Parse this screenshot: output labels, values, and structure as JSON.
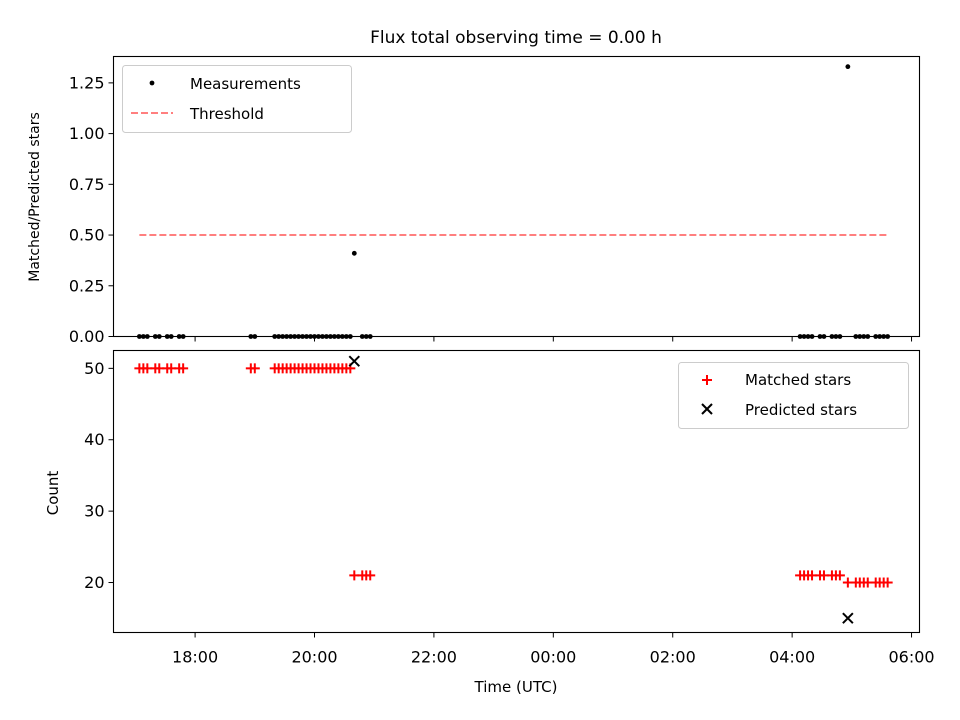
{
  "chart_data": [
    {
      "type": "scatter",
      "title": "Flux total observing time = 0.00 h",
      "xlabel": "",
      "ylabel": "Matched/Predicted stars",
      "ylim": [
        0,
        1.38
      ],
      "yticks": [
        0,
        0.25,
        0.5,
        0.75,
        1.0,
        1.25
      ],
      "ytick_labels": [
        "0.00",
        "0.25",
        "0.50",
        "0.75",
        "1.00",
        "1.25"
      ],
      "xlim": [
        "16:38",
        "06:08"
      ],
      "legend": {
        "placement": "top-left",
        "entries": [
          "Measurements",
          "Threshold"
        ]
      },
      "series": [
        {
          "name": "Measurements",
          "kind": "points",
          "color": "#000000",
          "points": [
            [
              "17:04",
              0
            ],
            [
              "17:08",
              0
            ],
            [
              "17:12",
              0
            ],
            [
              "17:20",
              0
            ],
            [
              "17:24",
              0
            ],
            [
              "17:32",
              0
            ],
            [
              "17:36",
              0
            ],
            [
              "17:44",
              0
            ],
            [
              "17:48",
              0
            ],
            [
              "18:56",
              0
            ],
            [
              "19:00",
              0
            ],
            [
              "19:20",
              0
            ],
            [
              "19:24",
              0
            ],
            [
              "19:28",
              0
            ],
            [
              "19:32",
              0
            ],
            [
              "19:36",
              0
            ],
            [
              "19:40",
              0
            ],
            [
              "19:44",
              0
            ],
            [
              "19:48",
              0
            ],
            [
              "19:52",
              0
            ],
            [
              "19:56",
              0
            ],
            [
              "20:00",
              0
            ],
            [
              "20:04",
              0
            ],
            [
              "20:08",
              0
            ],
            [
              "20:12",
              0
            ],
            [
              "20:16",
              0
            ],
            [
              "20:20",
              0
            ],
            [
              "20:24",
              0
            ],
            [
              "20:28",
              0
            ],
            [
              "20:32",
              0
            ],
            [
              "20:36",
              0
            ],
            [
              "20:40",
              0.41
            ],
            [
              "20:48",
              0
            ],
            [
              "20:52",
              0
            ],
            [
              "20:56",
              0
            ],
            [
              "04:08",
              0
            ],
            [
              "04:12",
              0
            ],
            [
              "04:16",
              0
            ],
            [
              "04:20",
              0
            ],
            [
              "04:28",
              0
            ],
            [
              "04:32",
              0
            ],
            [
              "04:40",
              0
            ],
            [
              "04:44",
              0
            ],
            [
              "04:48",
              0
            ],
            [
              "04:56",
              1.33
            ],
            [
              "05:04",
              0
            ],
            [
              "05:08",
              0
            ],
            [
              "05:12",
              0
            ],
            [
              "05:16",
              0
            ],
            [
              "05:24",
              0
            ],
            [
              "05:28",
              0
            ],
            [
              "05:32",
              0
            ],
            [
              "05:36",
              0
            ]
          ]
        },
        {
          "name": "Threshold",
          "kind": "dashed-line",
          "color": "#ff7f7f",
          "points": [
            [
              "17:04",
              0.5
            ],
            [
              "05:36",
              0.5
            ]
          ]
        }
      ]
    },
    {
      "type": "scatter",
      "title": "",
      "xlabel": "Time (UTC)",
      "ylabel": "Count",
      "ylim": [
        13,
        52.5
      ],
      "yticks": [
        20,
        30,
        40,
        50
      ],
      "ytick_labels": [
        "20",
        "30",
        "40",
        "50"
      ],
      "xlim": [
        "16:38",
        "06:08"
      ],
      "xticks": [
        "18:00",
        "20:00",
        "22:00",
        "00:00",
        "02:00",
        "04:00",
        "06:00"
      ],
      "legend": {
        "placement": "top-right",
        "entries": [
          "Matched stars",
          "Predicted stars"
        ]
      },
      "series": [
        {
          "name": "Matched stars",
          "kind": "plus",
          "color": "#ff0000",
          "points": [
            [
              "17:04",
              50
            ],
            [
              "17:08",
              50
            ],
            [
              "17:12",
              50
            ],
            [
              "17:20",
              50
            ],
            [
              "17:24",
              50
            ],
            [
              "17:32",
              50
            ],
            [
              "17:36",
              50
            ],
            [
              "17:44",
              50
            ],
            [
              "17:48",
              50
            ],
            [
              "18:56",
              50
            ],
            [
              "19:00",
              50
            ],
            [
              "19:20",
              50
            ],
            [
              "19:24",
              50
            ],
            [
              "19:28",
              50
            ],
            [
              "19:32",
              50
            ],
            [
              "19:36",
              50
            ],
            [
              "19:40",
              50
            ],
            [
              "19:44",
              50
            ],
            [
              "19:48",
              50
            ],
            [
              "19:52",
              50
            ],
            [
              "19:56",
              50
            ],
            [
              "20:00",
              50
            ],
            [
              "20:04",
              50
            ],
            [
              "20:08",
              50
            ],
            [
              "20:12",
              50
            ],
            [
              "20:16",
              50
            ],
            [
              "20:20",
              50
            ],
            [
              "20:24",
              50
            ],
            [
              "20:28",
              50
            ],
            [
              "20:32",
              50
            ],
            [
              "20:36",
              50
            ],
            [
              "20:40",
              21
            ],
            [
              "20:48",
              21
            ],
            [
              "20:52",
              21
            ],
            [
              "20:56",
              21
            ],
            [
              "04:08",
              21
            ],
            [
              "04:12",
              21
            ],
            [
              "04:16",
              21
            ],
            [
              "04:20",
              21
            ],
            [
              "04:28",
              21
            ],
            [
              "04:32",
              21
            ],
            [
              "04:40",
              21
            ],
            [
              "04:44",
              21
            ],
            [
              "04:48",
              21
            ],
            [
              "04:56",
              20
            ],
            [
              "05:04",
              20
            ],
            [
              "05:08",
              20
            ],
            [
              "05:12",
              20
            ],
            [
              "05:16",
              20
            ],
            [
              "05:24",
              20
            ],
            [
              "05:28",
              20
            ],
            [
              "05:32",
              20
            ],
            [
              "05:36",
              20
            ]
          ]
        },
        {
          "name": "Predicted stars",
          "kind": "x",
          "color": "#000000",
          "points": [
            [
              "20:40",
              51
            ],
            [
              "04:56",
              15
            ]
          ]
        }
      ]
    }
  ]
}
